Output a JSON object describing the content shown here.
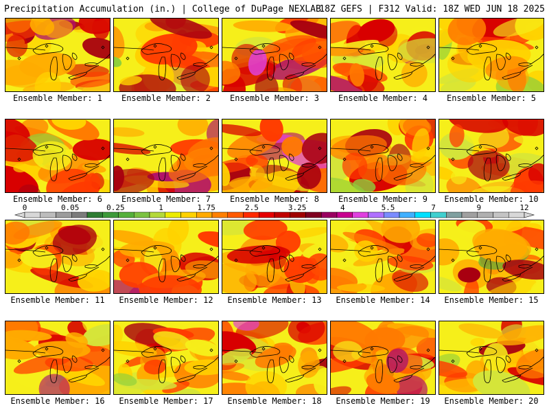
{
  "header": {
    "left": "Precipitation Accumulation (in.) | College of DuPage NEXLAB",
    "right": "18Z GEFS | F312 Valid: 18Z WED JUN 18 2025"
  },
  "members": [
    {
      "label": "Ensemble Member: 1",
      "wetness": 0.62
    },
    {
      "label": "Ensemble Member: 2",
      "wetness": 0.58
    },
    {
      "label": "Ensemble Member: 3",
      "wetness": 0.66
    },
    {
      "label": "Ensemble Member: 4",
      "wetness": 0.64
    },
    {
      "label": "Ensemble Member: 5",
      "wetness": 0.3
    },
    {
      "label": "Ensemble Member: 6",
      "wetness": 0.48
    },
    {
      "label": "Ensemble Member: 7",
      "wetness": 0.66
    },
    {
      "label": "Ensemble Member: 8",
      "wetness": 0.78
    },
    {
      "label": "Ensemble Member: 9",
      "wetness": 0.44
    },
    {
      "label": "Ensemble Member: 10",
      "wetness": 0.6
    },
    {
      "label": "Ensemble Member: 11",
      "wetness": 0.5
    },
    {
      "label": "Ensemble Member: 12",
      "wetness": 0.52
    },
    {
      "label": "Ensemble Member: 13",
      "wetness": 0.62
    },
    {
      "label": "Ensemble Member: 14",
      "wetness": 0.55
    },
    {
      "label": "Ensemble Member: 15",
      "wetness": 0.4
    },
    {
      "label": "Ensemble Member: 16",
      "wetness": 0.5
    },
    {
      "label": "Ensemble Member: 17",
      "wetness": 0.42
    },
    {
      "label": "Ensemble Member: 18",
      "wetness": 0.62
    },
    {
      "label": "Ensemble Member: 19",
      "wetness": 0.52
    },
    {
      "label": "Ensemble Member: 20",
      "wetness": 0.48
    }
  ],
  "colorbar": {
    "labels": [
      "0",
      "0.05",
      "0.25",
      "1",
      "1.75",
      "2.5",
      "3.25",
      "4",
      "5.5",
      "7",
      "9",
      "12"
    ],
    "colors": [
      "#d8d8d8",
      "#bcbcbc",
      "#9c9c9c",
      "#7c7c7c",
      "#2e7d32",
      "#3d9a3a",
      "#55b03b",
      "#7cc242",
      "#b4d93a",
      "#ecec00",
      "#ffd200",
      "#ffaa00",
      "#ff8000",
      "#ff5a00",
      "#ff2a00",
      "#e60000",
      "#c00000",
      "#a00000",
      "#800020",
      "#9a0060",
      "#c80090",
      "#e040e0",
      "#b070ff",
      "#7a8cff",
      "#40b0ff",
      "#00e0ff",
      "#40d0d0",
      "#80a0a0",
      "#a0a0a0",
      "#b0b0b0",
      "#c4c4c4",
      "#d8d8d8"
    ]
  }
}
